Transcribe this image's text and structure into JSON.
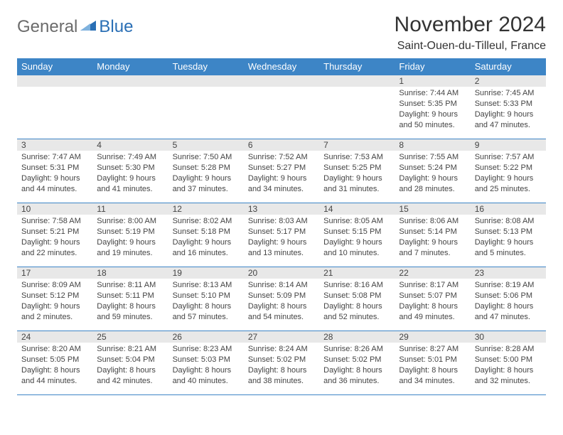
{
  "logo": {
    "text1": "General",
    "text2": "Blue"
  },
  "title": "November 2024",
  "location": "Saint-Ouen-du-Tilleul, France",
  "day_headers": [
    "Sunday",
    "Monday",
    "Tuesday",
    "Wednesday",
    "Thursday",
    "Friday",
    "Saturday"
  ],
  "colors": {
    "header_bg": "#3d85c6",
    "header_text": "#ffffff",
    "daynum_bg": "#e8e8e8",
    "body_text": "#444444",
    "border": "#3d85c6",
    "logo_gray": "#6b6b6b",
    "logo_blue": "#2a6fb5"
  },
  "weeks": [
    [
      null,
      null,
      null,
      null,
      null,
      {
        "n": "1",
        "sr": "Sunrise: 7:44 AM",
        "ss": "Sunset: 5:35 PM",
        "d1": "Daylight: 9 hours",
        "d2": "and 50 minutes."
      },
      {
        "n": "2",
        "sr": "Sunrise: 7:45 AM",
        "ss": "Sunset: 5:33 PM",
        "d1": "Daylight: 9 hours",
        "d2": "and 47 minutes."
      }
    ],
    [
      {
        "n": "3",
        "sr": "Sunrise: 7:47 AM",
        "ss": "Sunset: 5:31 PM",
        "d1": "Daylight: 9 hours",
        "d2": "and 44 minutes."
      },
      {
        "n": "4",
        "sr": "Sunrise: 7:49 AM",
        "ss": "Sunset: 5:30 PM",
        "d1": "Daylight: 9 hours",
        "d2": "and 41 minutes."
      },
      {
        "n": "5",
        "sr": "Sunrise: 7:50 AM",
        "ss": "Sunset: 5:28 PM",
        "d1": "Daylight: 9 hours",
        "d2": "and 37 minutes."
      },
      {
        "n": "6",
        "sr": "Sunrise: 7:52 AM",
        "ss": "Sunset: 5:27 PM",
        "d1": "Daylight: 9 hours",
        "d2": "and 34 minutes."
      },
      {
        "n": "7",
        "sr": "Sunrise: 7:53 AM",
        "ss": "Sunset: 5:25 PM",
        "d1": "Daylight: 9 hours",
        "d2": "and 31 minutes."
      },
      {
        "n": "8",
        "sr": "Sunrise: 7:55 AM",
        "ss": "Sunset: 5:24 PM",
        "d1": "Daylight: 9 hours",
        "d2": "and 28 minutes."
      },
      {
        "n": "9",
        "sr": "Sunrise: 7:57 AM",
        "ss": "Sunset: 5:22 PM",
        "d1": "Daylight: 9 hours",
        "d2": "and 25 minutes."
      }
    ],
    [
      {
        "n": "10",
        "sr": "Sunrise: 7:58 AM",
        "ss": "Sunset: 5:21 PM",
        "d1": "Daylight: 9 hours",
        "d2": "and 22 minutes."
      },
      {
        "n": "11",
        "sr": "Sunrise: 8:00 AM",
        "ss": "Sunset: 5:19 PM",
        "d1": "Daylight: 9 hours",
        "d2": "and 19 minutes."
      },
      {
        "n": "12",
        "sr": "Sunrise: 8:02 AM",
        "ss": "Sunset: 5:18 PM",
        "d1": "Daylight: 9 hours",
        "d2": "and 16 minutes."
      },
      {
        "n": "13",
        "sr": "Sunrise: 8:03 AM",
        "ss": "Sunset: 5:17 PM",
        "d1": "Daylight: 9 hours",
        "d2": "and 13 minutes."
      },
      {
        "n": "14",
        "sr": "Sunrise: 8:05 AM",
        "ss": "Sunset: 5:15 PM",
        "d1": "Daylight: 9 hours",
        "d2": "and 10 minutes."
      },
      {
        "n": "15",
        "sr": "Sunrise: 8:06 AM",
        "ss": "Sunset: 5:14 PM",
        "d1": "Daylight: 9 hours",
        "d2": "and 7 minutes."
      },
      {
        "n": "16",
        "sr": "Sunrise: 8:08 AM",
        "ss": "Sunset: 5:13 PM",
        "d1": "Daylight: 9 hours",
        "d2": "and 5 minutes."
      }
    ],
    [
      {
        "n": "17",
        "sr": "Sunrise: 8:09 AM",
        "ss": "Sunset: 5:12 PM",
        "d1": "Daylight: 9 hours",
        "d2": "and 2 minutes."
      },
      {
        "n": "18",
        "sr": "Sunrise: 8:11 AM",
        "ss": "Sunset: 5:11 PM",
        "d1": "Daylight: 8 hours",
        "d2": "and 59 minutes."
      },
      {
        "n": "19",
        "sr": "Sunrise: 8:13 AM",
        "ss": "Sunset: 5:10 PM",
        "d1": "Daylight: 8 hours",
        "d2": "and 57 minutes."
      },
      {
        "n": "20",
        "sr": "Sunrise: 8:14 AM",
        "ss": "Sunset: 5:09 PM",
        "d1": "Daylight: 8 hours",
        "d2": "and 54 minutes."
      },
      {
        "n": "21",
        "sr": "Sunrise: 8:16 AM",
        "ss": "Sunset: 5:08 PM",
        "d1": "Daylight: 8 hours",
        "d2": "and 52 minutes."
      },
      {
        "n": "22",
        "sr": "Sunrise: 8:17 AM",
        "ss": "Sunset: 5:07 PM",
        "d1": "Daylight: 8 hours",
        "d2": "and 49 minutes."
      },
      {
        "n": "23",
        "sr": "Sunrise: 8:19 AM",
        "ss": "Sunset: 5:06 PM",
        "d1": "Daylight: 8 hours",
        "d2": "and 47 minutes."
      }
    ],
    [
      {
        "n": "24",
        "sr": "Sunrise: 8:20 AM",
        "ss": "Sunset: 5:05 PM",
        "d1": "Daylight: 8 hours",
        "d2": "and 44 minutes."
      },
      {
        "n": "25",
        "sr": "Sunrise: 8:21 AM",
        "ss": "Sunset: 5:04 PM",
        "d1": "Daylight: 8 hours",
        "d2": "and 42 minutes."
      },
      {
        "n": "26",
        "sr": "Sunrise: 8:23 AM",
        "ss": "Sunset: 5:03 PM",
        "d1": "Daylight: 8 hours",
        "d2": "and 40 minutes."
      },
      {
        "n": "27",
        "sr": "Sunrise: 8:24 AM",
        "ss": "Sunset: 5:02 PM",
        "d1": "Daylight: 8 hours",
        "d2": "and 38 minutes."
      },
      {
        "n": "28",
        "sr": "Sunrise: 8:26 AM",
        "ss": "Sunset: 5:02 PM",
        "d1": "Daylight: 8 hours",
        "d2": "and 36 minutes."
      },
      {
        "n": "29",
        "sr": "Sunrise: 8:27 AM",
        "ss": "Sunset: 5:01 PM",
        "d1": "Daylight: 8 hours",
        "d2": "and 34 minutes."
      },
      {
        "n": "30",
        "sr": "Sunrise: 8:28 AM",
        "ss": "Sunset: 5:00 PM",
        "d1": "Daylight: 8 hours",
        "d2": "and 32 minutes."
      }
    ]
  ]
}
